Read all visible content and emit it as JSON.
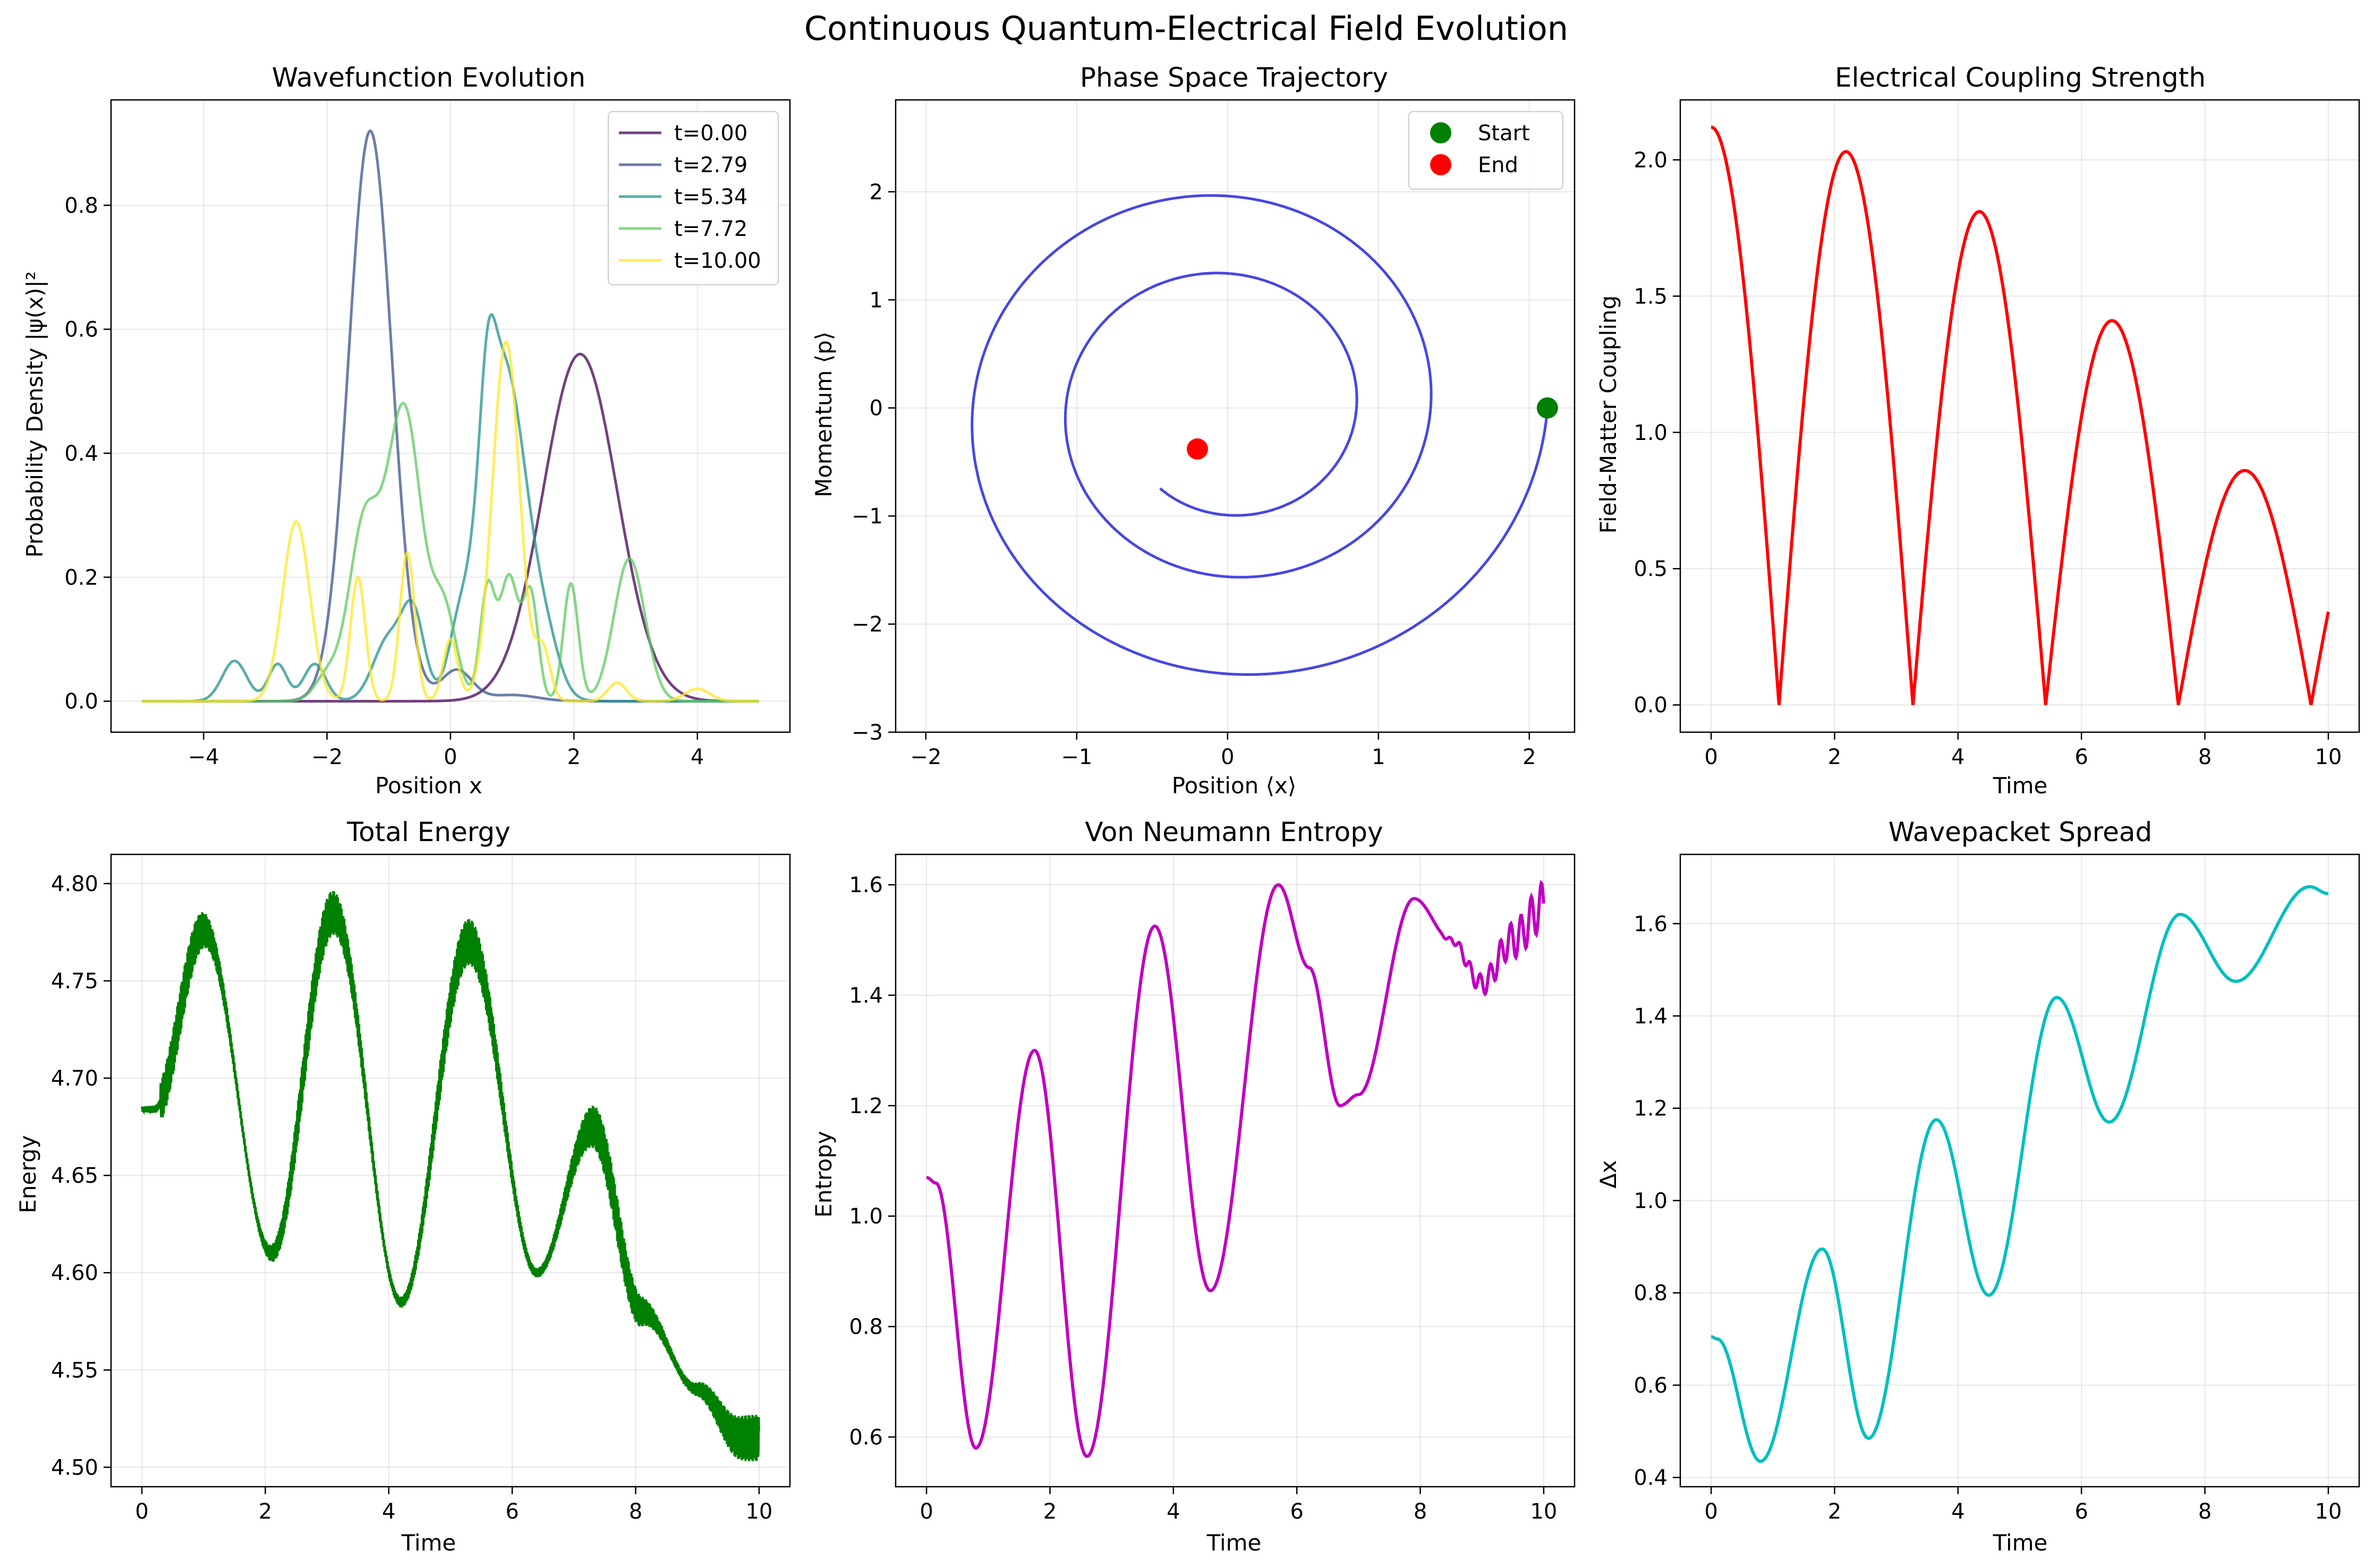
{
  "figure": {
    "suptitle": "Continuous Quantum-Electrical Field Evolution"
  },
  "chart_data": [
    {
      "type": "line",
      "title": "Wavefunction Evolution",
      "xlabel": "Position x",
      "ylabel": "Probability Density |ψ(x)|²",
      "xlim": [
        -5.5,
        5.5
      ],
      "ylim": [
        -0.05,
        0.97
      ],
      "xticks": [
        -4,
        -2,
        0,
        2,
        4
      ],
      "yticks": [
        0.0,
        0.2,
        0.4,
        0.6,
        0.8
      ],
      "grid": true,
      "legend": "top-right",
      "series": [
        {
          "name": "t=0.00",
          "color": "#440154",
          "gaussians": [
            [
              2.1,
              0.56,
              0.6
            ]
          ]
        },
        {
          "name": "t=2.79",
          "color": "#3b528b",
          "gaussians": [
            [
              -1.3,
              0.92,
              0.35
            ],
            [
              0.1,
              0.05,
              0.25
            ],
            [
              1.0,
              0.01,
              0.4
            ]
          ]
        },
        {
          "name": "t=5.34",
          "color": "#21918c",
          "gaussians": [
            [
              0.85,
              0.55,
              0.4
            ],
            [
              -3.5,
              0.065,
              0.2
            ],
            [
              -2.8,
              0.06,
              0.15
            ],
            [
              -2.2,
              0.06,
              0.18
            ],
            [
              -1.0,
              0.1,
              0.25
            ],
            [
              -0.6,
              0.13,
              0.18
            ],
            [
              0.1,
              0.05,
              0.15
            ],
            [
              0.6,
              0.15,
              0.12
            ],
            [
              1.6,
              0.04,
              0.2
            ]
          ]
        },
        {
          "name": "t=7.72",
          "color": "#5ec962",
          "gaussians": [
            [
              -0.75,
              0.47,
              0.28
            ],
            [
              -1.4,
              0.28,
              0.25
            ],
            [
              -0.1,
              0.14,
              0.2
            ],
            [
              0.6,
              0.18,
              0.12
            ],
            [
              0.95,
              0.2,
              0.15
            ],
            [
              1.3,
              0.17,
              0.12
            ],
            [
              1.95,
              0.19,
              0.12
            ],
            [
              2.9,
              0.23,
              0.25
            ],
            [
              -2.0,
              0.04,
              0.2
            ]
          ]
        },
        {
          "name": "t=10.00",
          "color": "#fde725",
          "gaussians": [
            [
              -2.5,
              0.29,
              0.22
            ],
            [
              -1.5,
              0.2,
              0.12
            ],
            [
              -0.7,
              0.24,
              0.12
            ],
            [
              0.0,
              0.1,
              0.12
            ],
            [
              0.9,
              0.58,
              0.22
            ],
            [
              1.5,
              0.08,
              0.12
            ],
            [
              2.7,
              0.03,
              0.15
            ],
            [
              4.0,
              0.02,
              0.2
            ]
          ]
        }
      ]
    },
    {
      "type": "line",
      "title": "Phase Space Trajectory",
      "xlabel": "Position ⟨x⟩",
      "ylabel": "Momentum ⟨p⟩",
      "xlim": [
        -2.2,
        2.3
      ],
      "ylim": [
        -3.0,
        2.85
      ],
      "xticks": [
        -2,
        -1,
        0,
        1,
        2
      ],
      "yticks": [
        -3,
        -2,
        -1,
        0,
        1,
        2
      ],
      "grid": true,
      "legend": "top-right",
      "color": "#3333dd",
      "spiral": {
        "amp0": 2.12,
        "decay": 0.107,
        "omega": 1.48,
        "turns_t_max": 10
      },
      "markers": [
        {
          "name": "Start",
          "x": 2.12,
          "y": 0.0,
          "color": "#008000"
        },
        {
          "name": "End",
          "x": -0.2,
          "y": -0.38,
          "color": "#ff0000"
        }
      ]
    },
    {
      "type": "line",
      "title": "Electrical Coupling Strength",
      "xlabel": "Time",
      "ylabel": "Field-Matter Coupling",
      "xlim": [
        -0.5,
        10.5
      ],
      "ylim": [
        -0.1,
        2.22
      ],
      "xticks": [
        0,
        2,
        4,
        6,
        8,
        10
      ],
      "yticks": [
        0.0,
        0.5,
        1.0,
        1.5,
        2.0
      ],
      "grid": true,
      "color": "#ff0000",
      "peaks": [
        [
          0.0,
          2.12
        ],
        [
          2.17,
          2.03
        ],
        [
          4.33,
          1.81
        ],
        [
          6.43,
          1.41
        ],
        [
          8.5,
          0.86
        ]
      ],
      "zeros": [
        1.1,
        3.27,
        5.42,
        7.57,
        9.72
      ],
      "end": [
        10.0,
        0.2
      ]
    },
    {
      "type": "line",
      "title": "Total Energy",
      "xlabel": "Time",
      "ylabel": "Energy",
      "xlim": [
        -0.5,
        10.5
      ],
      "ylim": [
        4.49,
        4.815
      ],
      "xticks": [
        0,
        2,
        4,
        6,
        8,
        10
      ],
      "yticks": [
        4.5,
        4.55,
        4.6,
        4.65,
        4.7,
        4.75,
        4.8
      ],
      "grid": true,
      "color": "#008000",
      "keypoints": [
        [
          0.0,
          4.684
        ],
        [
          0.2,
          4.684
        ],
        [
          1.0,
          4.776
        ],
        [
          2.1,
          4.61
        ],
        [
          3.1,
          4.785
        ],
        [
          4.2,
          4.585
        ],
        [
          5.3,
          4.77
        ],
        [
          6.4,
          4.6
        ],
        [
          7.3,
          4.675
        ],
        [
          8.1,
          4.58
        ],
        [
          9.0,
          4.54
        ],
        [
          9.7,
          4.515
        ],
        [
          10.0,
          4.515
        ]
      ],
      "noise_band": 0.012
    },
    {
      "type": "line",
      "title": "Von Neumann Entropy",
      "xlabel": "Time",
      "ylabel": "Entropy",
      "xlim": [
        -0.5,
        10.5
      ],
      "ylim": [
        0.51,
        1.655
      ],
      "xticks": [
        0,
        2,
        4,
        6,
        8,
        10
      ],
      "yticks": [
        0.6,
        0.8,
        1.0,
        1.2,
        1.4,
        1.6
      ],
      "grid": true,
      "color": "#bf00bf",
      "keypoints": [
        [
          0.0,
          1.07
        ],
        [
          0.15,
          1.06
        ],
        [
          0.8,
          0.58
        ],
        [
          1.75,
          1.3
        ],
        [
          2.6,
          0.565
        ],
        [
          3.7,
          1.525
        ],
        [
          4.6,
          0.865
        ],
        [
          5.7,
          1.6
        ],
        [
          6.2,
          1.45
        ],
        [
          6.7,
          1.2
        ],
        [
          7.0,
          1.22
        ],
        [
          7.9,
          1.575
        ],
        [
          8.5,
          1.5
        ],
        [
          9.0,
          1.42
        ],
        [
          9.5,
          1.5
        ],
        [
          10.0,
          1.56
        ]
      ]
    },
    {
      "type": "line",
      "title": "Wavepacket Spread",
      "xlabel": "Time",
      "ylabel": "Δx",
      "xlim": [
        -0.5,
        10.5
      ],
      "ylim": [
        0.38,
        1.75
      ],
      "xticks": [
        0,
        2,
        4,
        6,
        8,
        10
      ],
      "yticks": [
        0.4,
        0.6,
        0.8,
        1.0,
        1.2,
        1.4,
        1.6
      ],
      "grid": true,
      "color": "#00bfbf",
      "keypoints": [
        [
          0.0,
          0.705
        ],
        [
          0.1,
          0.7
        ],
        [
          0.8,
          0.435
        ],
        [
          1.8,
          0.895
        ],
        [
          2.55,
          0.485
        ],
        [
          3.65,
          1.175
        ],
        [
          4.5,
          0.795
        ],
        [
          5.6,
          1.44
        ],
        [
          6.45,
          1.17
        ],
        [
          7.6,
          1.62
        ],
        [
          8.5,
          1.475
        ],
        [
          9.7,
          1.68
        ],
        [
          10.0,
          1.665
        ]
      ]
    }
  ]
}
